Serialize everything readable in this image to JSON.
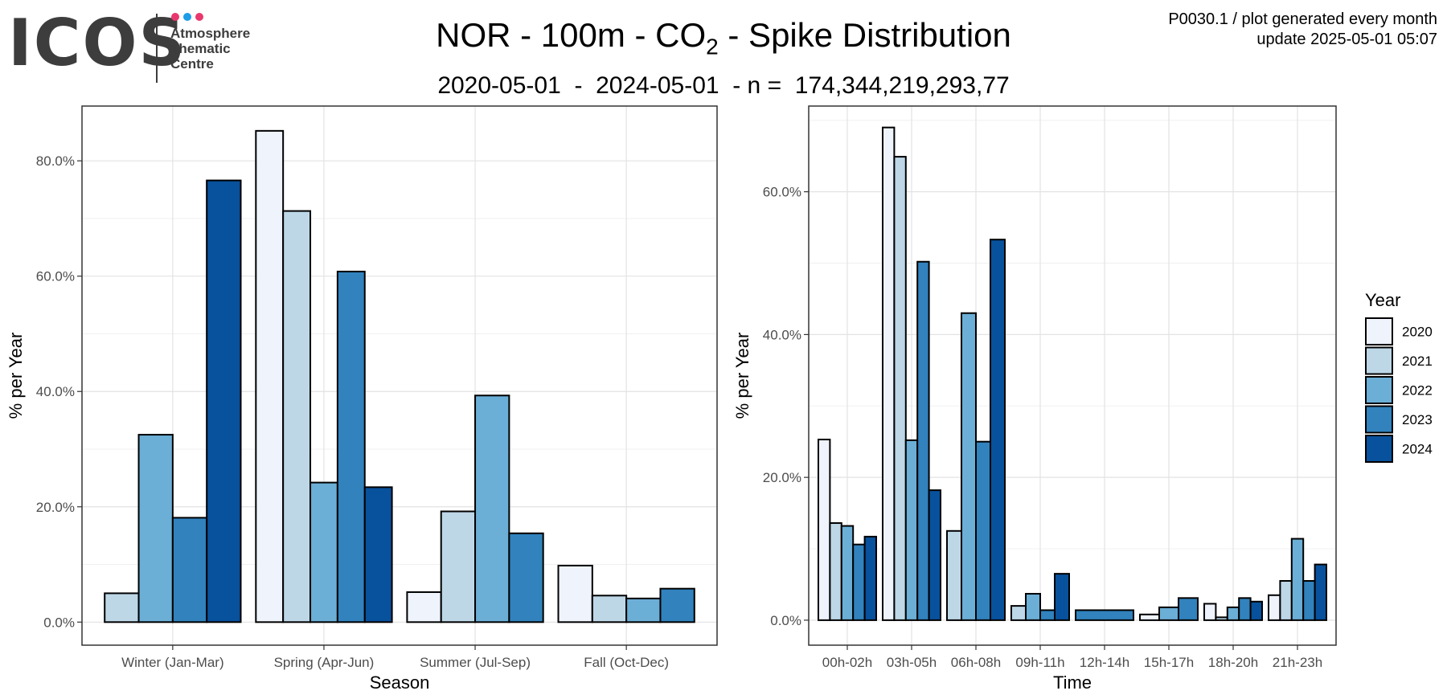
{
  "header": {
    "logo": {
      "word": "ICOS",
      "sub": [
        "Atmosphere",
        "Thematic",
        "Centre"
      ],
      "dot_colors": [
        "#e8386d",
        "#1e9ce8",
        "#e8386d"
      ]
    },
    "title_main": "NOR - 100m - CO",
    "title_sub_script": "2",
    "title_end": " - Spike Distribution",
    "subtitle": "2020-05-01  -  2024-05-01  - n =  174,344,219,293,77",
    "meta_line1": "P0030.1 / plot generated every month",
    "meta_line2": "update  2025-05-01 05:07"
  },
  "legend": {
    "title": "Year",
    "items": [
      {
        "label": "2020",
        "color": "#eef3fc"
      },
      {
        "label": "2021",
        "color": "#bdd7e7"
      },
      {
        "label": "2022",
        "color": "#6baed6"
      },
      {
        "label": "2023",
        "color": "#3182bd"
      },
      {
        "label": "2024",
        "color": "#08519c"
      }
    ]
  },
  "chart_data": [
    {
      "type": "bar",
      "title": "",
      "xlabel": "Season",
      "ylabel": "% per Year",
      "ylim": [
        -4,
        89.5
      ],
      "yticks": [
        0,
        20,
        40,
        60,
        80
      ],
      "ytick_labels": [
        "0.0%",
        "20.0%",
        "40.0%",
        "60.0%",
        "80.0%"
      ],
      "grid": true,
      "categories": [
        "Winter (Jan-Mar)",
        "Spring (Apr-Jun)",
        "Summer (Jul-Sep)",
        "Fall (Oct-Dec)"
      ],
      "series": [
        {
          "name": "2020",
          "values": [
            null,
            85.2,
            5.2,
            9.8
          ]
        },
        {
          "name": "2021",
          "values": [
            5.0,
            71.3,
            19.2,
            4.6
          ]
        },
        {
          "name": "2022",
          "values": [
            32.5,
            24.2,
            39.3,
            4.1
          ]
        },
        {
          "name": "2023",
          "values": [
            18.1,
            60.8,
            15.4,
            5.8
          ]
        },
        {
          "name": "2024",
          "values": [
            76.6,
            23.4,
            null,
            null
          ]
        }
      ]
    },
    {
      "type": "bar",
      "title": "",
      "xlabel": "Time",
      "ylabel": "% per Year",
      "ylim": [
        -3.5,
        72
      ],
      "yticks": [
        0,
        20,
        40,
        60
      ],
      "ytick_labels": [
        "0.0%",
        "20.0%",
        "40.0%",
        "60.0%"
      ],
      "grid": true,
      "categories": [
        "00h-02h",
        "03h-05h",
        "06h-08h",
        "09h-11h",
        "12h-14h",
        "15h-17h",
        "18h-20h",
        "21h-23h"
      ],
      "series": [
        {
          "name": "2020",
          "values": [
            25.3,
            69.0,
            null,
            null,
            null,
            0.8,
            2.3,
            3.5
          ]
        },
        {
          "name": "2021",
          "values": [
            13.6,
            64.9,
            12.5,
            2.0,
            null,
            null,
            0.4,
            5.5
          ]
        },
        {
          "name": "2022",
          "values": [
            13.2,
            25.2,
            43.0,
            3.7,
            null,
            1.8,
            1.8,
            11.4
          ]
        },
        {
          "name": "2023",
          "values": [
            10.6,
            50.2,
            25.0,
            1.4,
            1.4,
            3.1,
            3.1,
            5.5
          ]
        },
        {
          "name": "2024",
          "values": [
            11.7,
            18.2,
            53.3,
            6.5,
            null,
            null,
            2.6,
            7.8
          ]
        }
      ]
    }
  ]
}
